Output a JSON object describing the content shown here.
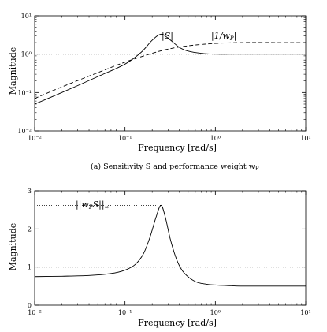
{
  "chart_data": [
    {
      "type": "line",
      "panel": "top",
      "xscale": "log",
      "yscale": "log",
      "xlim": [
        0.01,
        10
      ],
      "ylim": [
        0.01,
        10
      ],
      "xlabel": "Frequency [rad/s]",
      "ylabel": "Magnitude",
      "x_ticks": [
        0.01,
        0.1,
        1,
        10
      ],
      "y_ticks": [
        0.01,
        0.1,
        1,
        10
      ],
      "x_tick_labels": [
        "10⁻²",
        "10⁻¹",
        "10⁰",
        "10¹"
      ],
      "y_tick_labels": [
        "10⁻²",
        "10⁻¹",
        "10⁰",
        "10¹"
      ],
      "caption": "(a) Sensitivity S and performance weight w",
      "caption_subscript": "P",
      "reference_line": {
        "y": 1,
        "style": "dotted"
      },
      "series": [
        {
          "label": "|S|",
          "style": "solid",
          "x": [
            0.01,
            0.02,
            0.05,
            0.1,
            0.15,
            0.2,
            0.25,
            0.3,
            0.4,
            0.5,
            0.7,
            1,
            2,
            5,
            10
          ],
          "y": [
            0.05,
            0.1,
            0.26,
            0.55,
            1.1,
            2.3,
            3.3,
            2.6,
            1.5,
            1.2,
            1.05,
            1.0,
            1.0,
            1.0,
            1.0
          ]
        },
        {
          "label": "|1/w_P|",
          "style": "dashed",
          "x": [
            0.01,
            0.02,
            0.05,
            0.1,
            0.2,
            0.3,
            0.5,
            1,
            2,
            5,
            10
          ],
          "y": [
            0.07,
            0.14,
            0.33,
            0.62,
            1.05,
            1.35,
            1.65,
            1.9,
            2.0,
            2.0,
            2.0
          ]
        }
      ]
    },
    {
      "type": "line",
      "panel": "bottom",
      "xscale": "log",
      "yscale": "linear",
      "xlim": [
        0.01,
        10
      ],
      "ylim": [
        0,
        3
      ],
      "xlabel": "Frequency [rad/s]",
      "ylabel": "Magnitude",
      "x_ticks": [
        0.01,
        0.1,
        1,
        10
      ],
      "y_ticks": [
        0,
        1,
        2,
        3
      ],
      "x_tick_labels": [
        "10⁻²",
        "10⁻¹",
        "10⁰",
        "10¹"
      ],
      "y_tick_labels": [
        "0",
        "1",
        "2",
        "3"
      ],
      "reference_line": {
        "y": 1,
        "style": "dotted"
      },
      "peak_line": {
        "y": 2.62,
        "x_end": 0.25,
        "style": "dotted"
      },
      "annotation": "||w_P S||_∞",
      "series": [
        {
          "label": "|w_P S|",
          "style": "solid",
          "x": [
            0.01,
            0.02,
            0.04,
            0.07,
            0.1,
            0.13,
            0.16,
            0.19,
            0.22,
            0.25,
            0.28,
            0.32,
            0.38,
            0.45,
            0.6,
            0.8,
            1,
            1.5,
            2,
            5,
            10
          ],
          "y": [
            0.75,
            0.76,
            0.78,
            0.83,
            0.92,
            1.07,
            1.35,
            1.8,
            2.3,
            2.62,
            2.3,
            1.7,
            1.15,
            0.85,
            0.62,
            0.55,
            0.53,
            0.51,
            0.5,
            0.5,
            0.5
          ]
        }
      ]
    }
  ]
}
